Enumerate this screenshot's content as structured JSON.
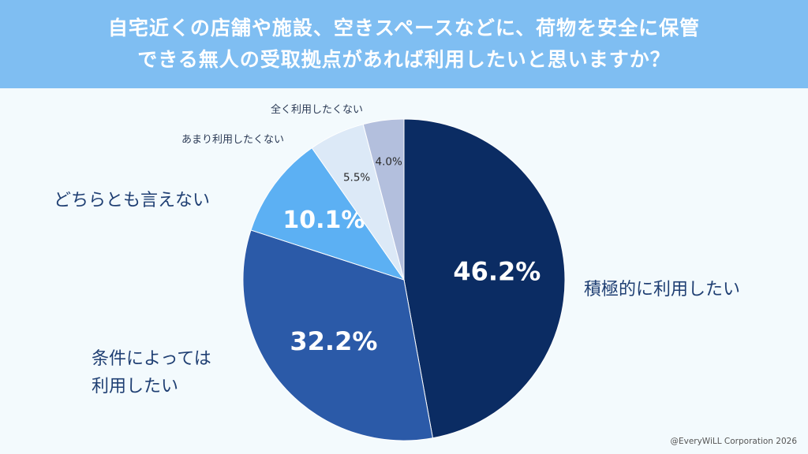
{
  "header": {
    "title_line1": "自宅近くの店舗や施設、空きスペースなどに、荷物を安全に保管",
    "title_line2": "できる無人の受取拠点があれば利用したいと思いますか？"
  },
  "chart_data": {
    "type": "pie",
    "categories": [
      "積極的に利用したい",
      "条件によっては利用したい",
      "どちらとも言えない",
      "あまり利用したくない",
      "全く利用したくない"
    ],
    "values": [
      46.2,
      32.2,
      10.1,
      5.5,
      4.0
    ],
    "value_labels": [
      "46.2%",
      "32.2%",
      "10.1%",
      "5.5%",
      "4.0%"
    ],
    "colors": [
      "#0b2c63",
      "#2b5aa8",
      "#5cb0f3",
      "#dce9f7",
      "#b3bfdd"
    ],
    "start": "12 o'clock",
    "direction": "clockwise"
  },
  "labels": {
    "cat1": "積極的に利用したい",
    "cat2_line1": "条件によっては",
    "cat2_line2": "利用したい",
    "cat3": "どちらとも言えない",
    "cat4": "あまり利用したくない",
    "cat5": "全く利用したくない"
  },
  "copyright": "@EveryWiLL Corporation 2026"
}
